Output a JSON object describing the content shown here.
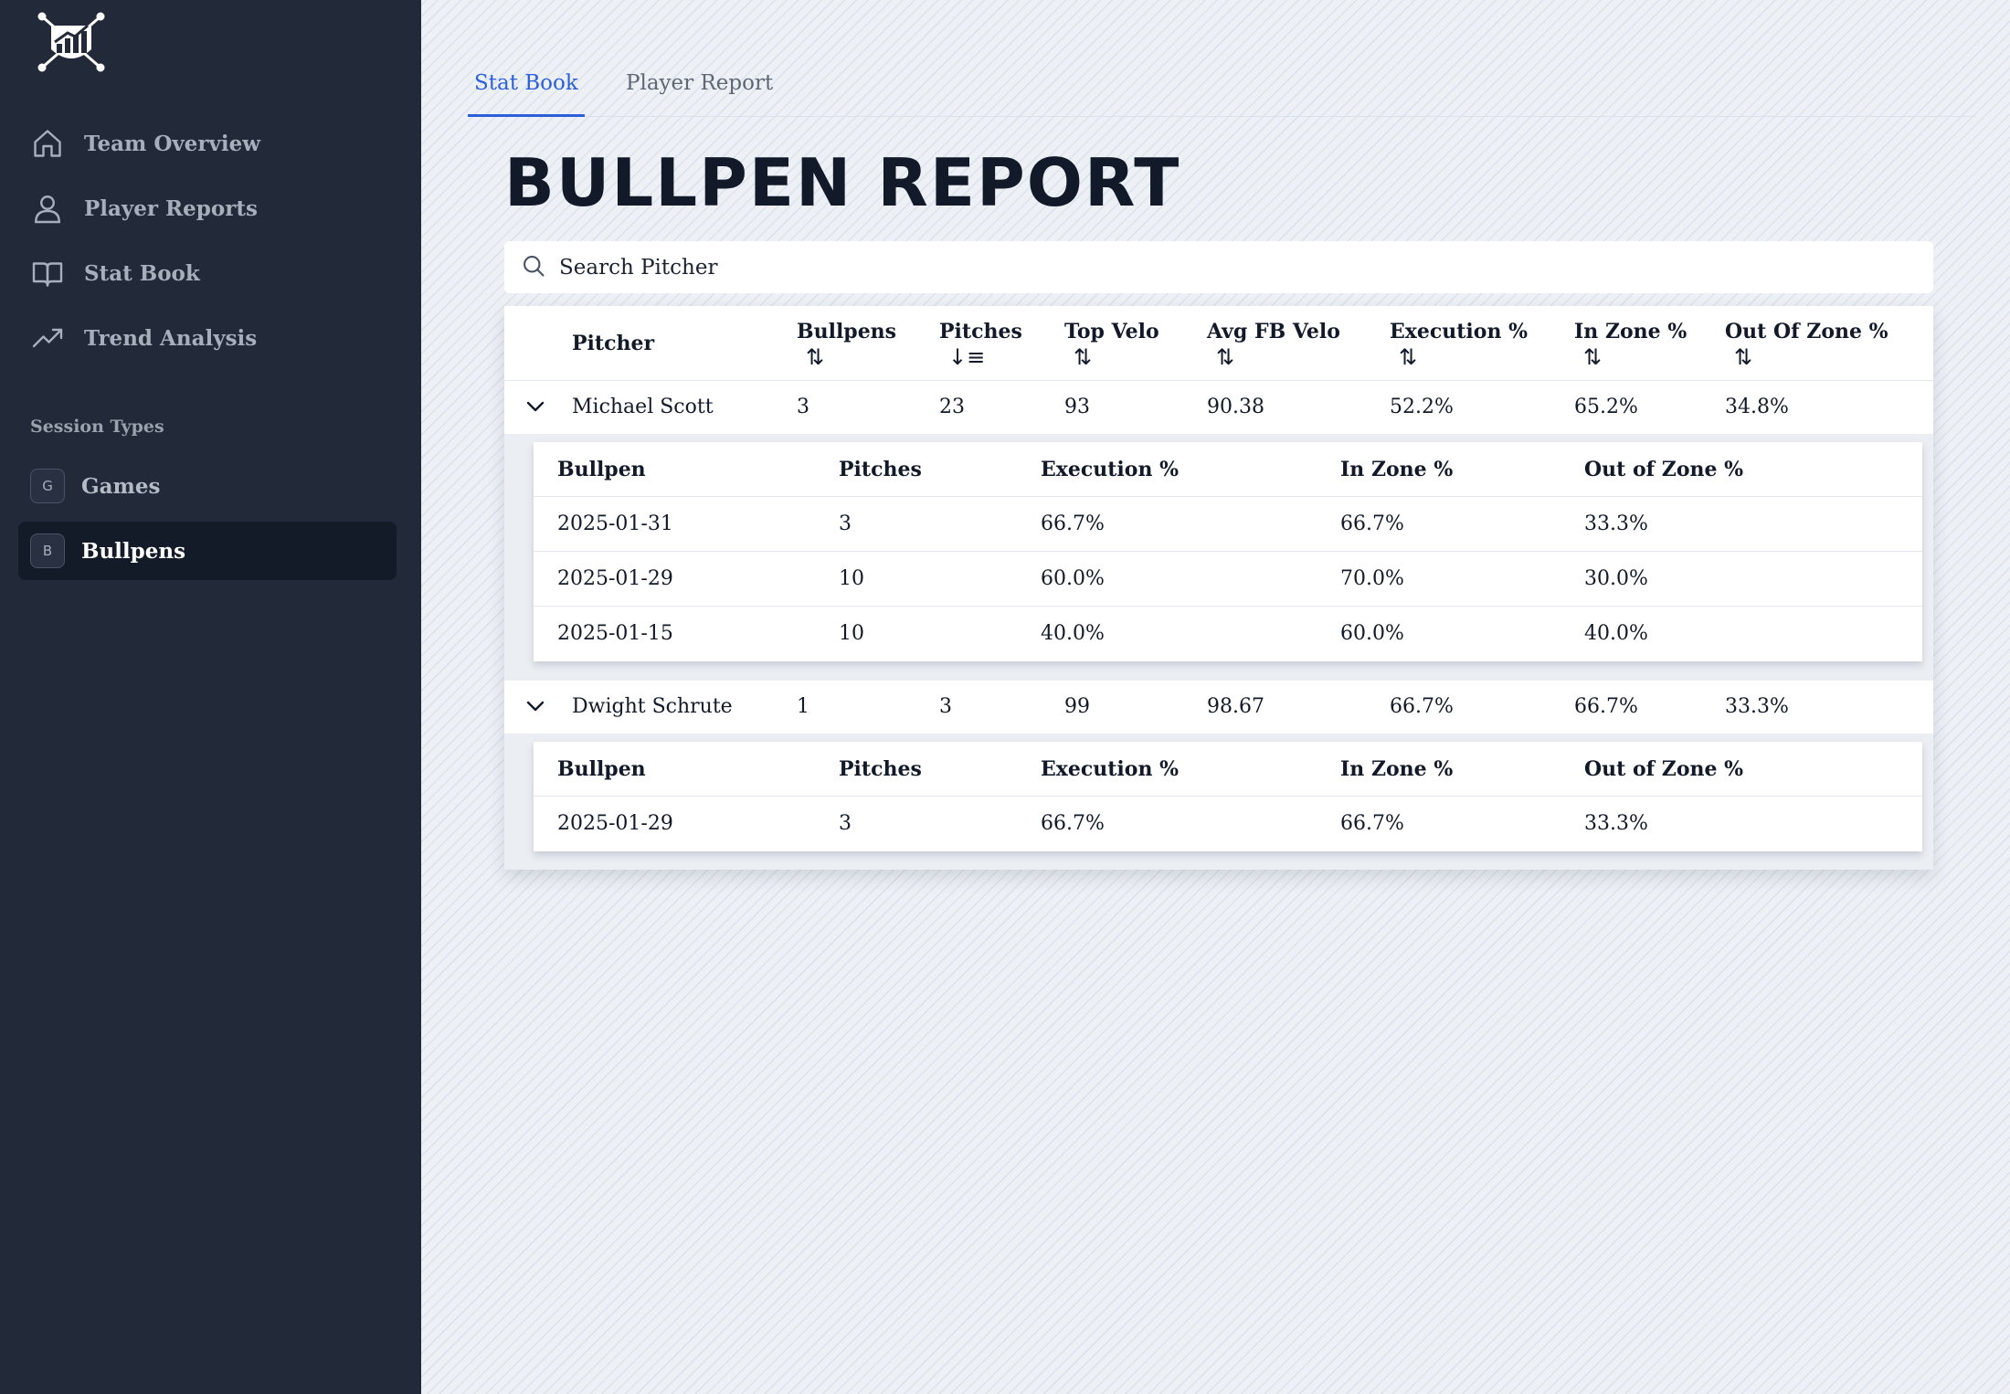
{
  "sidebar": {
    "nav": [
      {
        "label": "Team Overview",
        "icon": "home-icon"
      },
      {
        "label": "Player Reports",
        "icon": "user-icon"
      },
      {
        "label": "Stat Book",
        "icon": "book-icon"
      },
      {
        "label": "Trend Analysis",
        "icon": "trend-icon"
      }
    ],
    "section_label": "Session Types",
    "sessions": [
      {
        "badge": "G",
        "label": "Games"
      },
      {
        "badge": "B",
        "label": "Bullpens"
      }
    ]
  },
  "tabs": [
    {
      "label": "Stat Book"
    },
    {
      "label": "Player Report"
    }
  ],
  "page_title": "BULLPEN REPORT",
  "search": {
    "placeholder": "Search Pitcher"
  },
  "table": {
    "headers": [
      "Pitcher",
      "Bullpens",
      "Pitches",
      "Top Velo",
      "Avg FB Velo",
      "Execution %",
      "In Zone %",
      "Out Of Zone %"
    ],
    "sort_icons": [
      "⇅",
      "↓≡",
      "⇅",
      "⇅",
      "⇅",
      "⇅",
      "⇅"
    ],
    "sub_headers": [
      "Bullpen",
      "Pitches",
      "Execution %",
      "In Zone %",
      "Out of Zone %"
    ],
    "pitchers": [
      {
        "name": "Michael Scott",
        "bullpens": "3",
        "pitches": "23",
        "top_velo": "93",
        "avg_fb_velo": "90.38",
        "execution": "52.2%",
        "in_zone": "65.2%",
        "out_zone": "34.8%",
        "sessions": [
          [
            "2025-01-31",
            "3",
            "66.7%",
            "66.7%",
            "33.3%"
          ],
          [
            "2025-01-29",
            "10",
            "60.0%",
            "70.0%",
            "30.0%"
          ],
          [
            "2025-01-15",
            "10",
            "40.0%",
            "60.0%",
            "40.0%"
          ]
        ]
      },
      {
        "name": "Dwight Schrute",
        "bullpens": "1",
        "pitches": "3",
        "top_velo": "99",
        "avg_fb_velo": "98.67",
        "execution": "66.7%",
        "in_zone": "66.7%",
        "out_zone": "33.3%",
        "sessions": [
          [
            "2025-01-29",
            "3",
            "66.7%",
            "66.7%",
            "33.3%"
          ]
        ]
      }
    ]
  }
}
